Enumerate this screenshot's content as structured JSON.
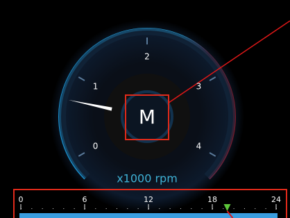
{
  "gauge": {
    "ticks": [
      0,
      1,
      2,
      3,
      4
    ],
    "value": 0.7,
    "unit": "x1000 rpm",
    "gear": "M"
  },
  "timeline": {
    "ticks": [
      0,
      6,
      12,
      18,
      24
    ],
    "value": 19.4
  }
}
